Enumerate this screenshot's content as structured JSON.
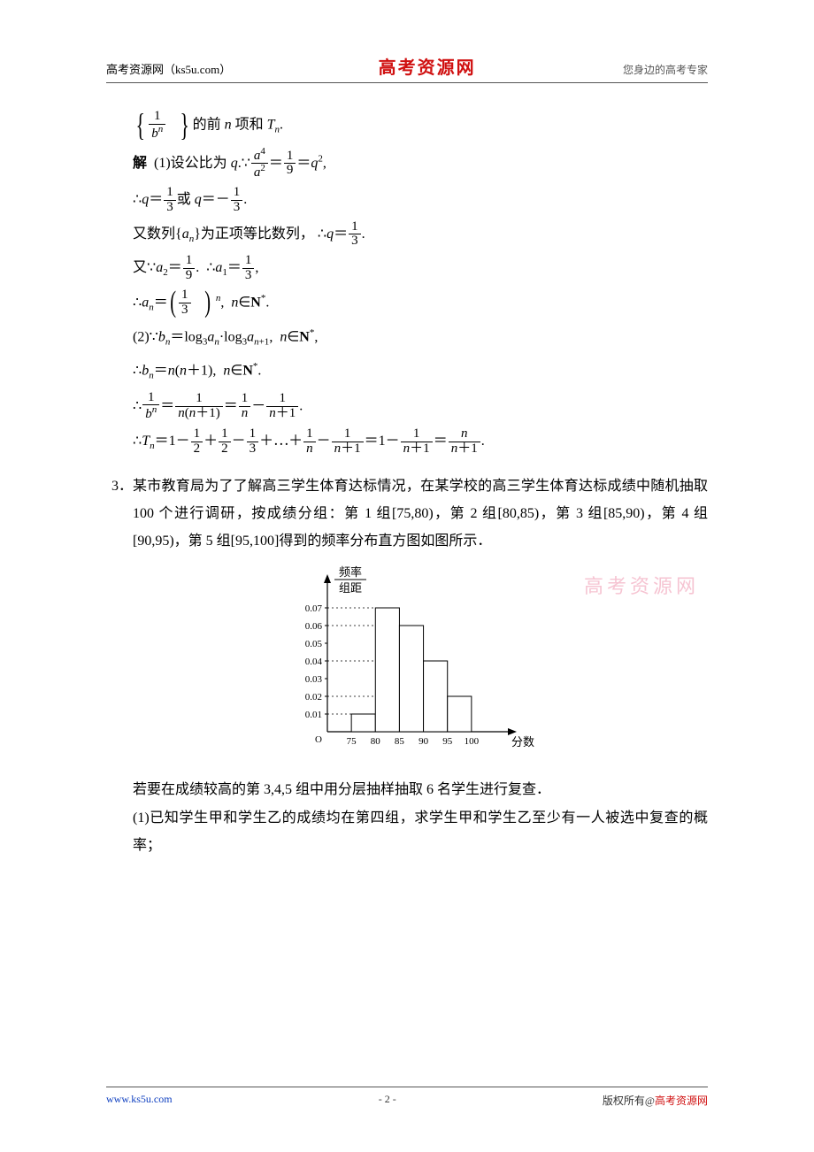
{
  "header": {
    "left": "高考资源网（ks5u.com）",
    "center": "高考资源网",
    "right": "您身边的高考专家"
  },
  "watermark": "高考资源网",
  "math": {
    "l1_pre": "的前",
    "l1_mid": "项和",
    "l2_label": "解",
    "l2_text": "(1)设公比为",
    "l3_or": "或",
    "l4_a": "又数列{",
    "l4_b": "}为正项等比数列，",
    "l5_pre": "又",
    "var_n": "n",
    "var_T": "T",
    "var_q": "q",
    "var_a": "a",
    "var_b": "b",
    "nat": "N",
    "sym_therefore": "∴",
    "sym_because": "∵",
    "sym_in": "∈",
    "sym_dots": "⋯",
    "frac_1": "1",
    "frac_2": "2",
    "frac_3": "3",
    "frac_9": "9",
    "sq": "2",
    "p4": "4",
    "star": "*",
    "log": "log",
    "plus1": "+1",
    "item2": "(2)"
  },
  "problem3": {
    "num": "3．",
    "p1": "某市教育局为了了解高三学生体育达标情况，在某学校的高三学生体育达标成绩中随机抽取 100 个进行调研，按成绩分组：第 1 组[75,80)，第 2 组[80,85)，第 3 组[85,90)，第 4 组[90,95)，第 5 组[95,100]得到的频率分布直方图如图所示．",
    "p2": "若要在成绩较高的第 3,4,5 组中用分层抽样抽取 6 名学生进行复查．",
    "p3": "(1)已知学生甲和学生乙的成绩均在第四组，求学生甲和学生乙至少有一人被选中复查的概率；"
  },
  "chart": {
    "ylabel_top": "频率",
    "ylabel_bot": "组距",
    "xlabel": "分数",
    "yticks": [
      "0.01",
      "0.02",
      "0.03",
      "0.04",
      "0.05",
      "0.06",
      "0.07"
    ],
    "xticks": [
      "75",
      "80",
      "85",
      "90",
      "95",
      "100"
    ],
    "bars": [
      {
        "x": 75,
        "h": 0.01
      },
      {
        "x": 80,
        "h": 0.07
      },
      {
        "x": 85,
        "h": 0.06
      },
      {
        "x": 90,
        "h": 0.04
      },
      {
        "x": 95,
        "h": 0.02
      }
    ],
    "axis_color": "#000000",
    "grid_dash": "2,3",
    "bar_fill": "#ffffff",
    "bar_stroke": "#000000",
    "xlim": [
      70,
      105
    ],
    "ylim": [
      0,
      0.08
    ],
    "font_size_tick": 11,
    "font_size_label": 13,
    "origin_label": "O"
  },
  "footer": {
    "left": "www.ks5u.com",
    "center": "- 2 -",
    "right_a": "版权所有@",
    "right_b": "高考资源网"
  }
}
